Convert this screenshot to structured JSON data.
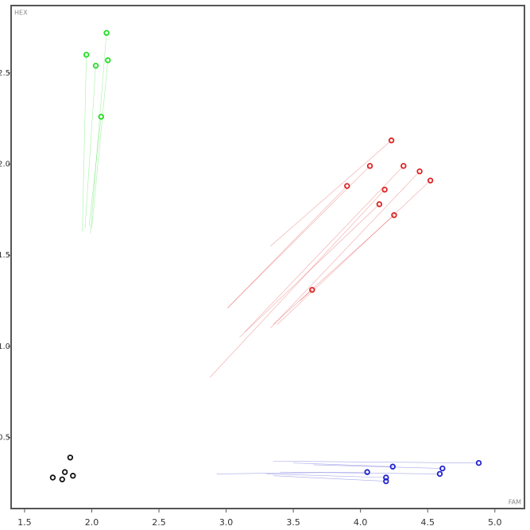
{
  "chart_data": {
    "type": "scatter",
    "x_label": "FAM",
    "y_label": "HEX",
    "xlim": [
      1.4,
      5.22
    ],
    "ylim": [
      0.11,
      2.87
    ],
    "xticks": [
      1.5,
      {
        "value": 2,
        "label": "2.0"
      },
      2.5,
      {
        "value": 3,
        "label": "3.0"
      },
      3.5,
      {
        "value": 4,
        "label": "4.0"
      },
      4.5,
      {
        "value": 5,
        "label": "5.0"
      }
    ],
    "yticks": [
      0.5,
      {
        "value": 1,
        "label": "1.0"
      },
      1.5,
      {
        "value": 2,
        "label": "2.0"
      },
      2.5
    ],
    "grid": false,
    "series": [
      {
        "color": "#22dd22",
        "x": [
          1.96,
          2.11,
          2.03,
          2.12,
          2.07
        ],
        "y": [
          2.6,
          2.72,
          2.54,
          2.57,
          2.26
        ],
        "tail_x": [
          1.93,
          1.99,
          1.95,
          2.0,
          1.98
        ],
        "tail_y": [
          1.63,
          1.62,
          1.65,
          1.65,
          1.66
        ]
      },
      {
        "color": "#dd2222",
        "x": [
          4.23,
          4.07,
          4.32,
          4.44,
          4.52,
          3.9,
          4.18,
          4.14,
          4.25,
          3.64
        ],
        "y": [
          2.13,
          1.99,
          1.99,
          1.96,
          1.91,
          1.88,
          1.86,
          1.78,
          1.72,
          1.31
        ],
        "tail_x": [
          3.33,
          3.01,
          3.14,
          3.33,
          3.38,
          3.01,
          2.88,
          3.1,
          3.35,
          3.55
        ],
        "tail_y": [
          1.55,
          1.21,
          1.08,
          1.1,
          1.12,
          1.21,
          0.83,
          1.05,
          1.12,
          1.25
        ]
      },
      {
        "color": "#2222cc",
        "x": [
          4.88,
          4.24,
          4.61,
          4.59,
          4.05,
          4.19,
          4.19
        ],
        "y": [
          0.36,
          0.34,
          0.33,
          0.3,
          0.31,
          0.28,
          0.26
        ],
        "tail_x": [
          3.35,
          3.5,
          3.65,
          3.4,
          2.93,
          3.3,
          3.35
        ],
        "tail_y": [
          0.37,
          0.36,
          0.35,
          0.31,
          0.3,
          0.3,
          0.29
        ]
      },
      {
        "color": "#111111",
        "x": [
          1.84,
          1.8,
          1.71,
          1.86,
          1.78
        ],
        "y": [
          0.39,
          0.31,
          0.28,
          0.29,
          0.27
        ]
      }
    ]
  }
}
